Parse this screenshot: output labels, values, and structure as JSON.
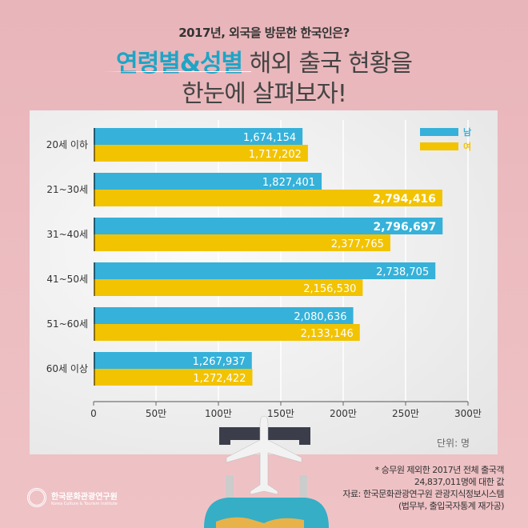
{
  "header": {
    "subtitle": "2017년, 외국을 방문한 한국인은?",
    "title_highlight": "연령별&성별",
    "title_rest": " 해외 출국 현황을",
    "title_line2": "한눈에 살펴보자!"
  },
  "chart_data": {
    "type": "bar",
    "orientation": "horizontal",
    "categories": [
      "20세 이하",
      "21~30세",
      "31~40세",
      "41~50세",
      "51~60세",
      "60세 이상"
    ],
    "series": [
      {
        "name": "남",
        "color": "#36b1d9",
        "values": [
          1674154,
          1827401,
          2796697,
          2738705,
          2080636,
          1267937
        ]
      },
      {
        "name": "여",
        "color": "#f2c300",
        "values": [
          1717202,
          2794416,
          2377765,
          2156530,
          2133146,
          1272422
        ]
      }
    ],
    "xlim": [
      0,
      3000000
    ],
    "xticks": [
      0,
      500000,
      1000000,
      1500000,
      2000000,
      2500000,
      3000000
    ],
    "xtick_labels": [
      "0",
      "50만",
      "100만",
      "150만",
      "200만",
      "250만",
      "300만"
    ],
    "grid": true,
    "legend": "top-right",
    "unit_label": "단위: 명"
  },
  "notes": [
    "* 승무원 제외한 2017년 전체 출국객",
    "24,837,011명에 대한 값",
    "자료: 한국문화관광연구원 관광지식정보시스템",
    "(법무부, 출입국자통계 재가공)"
  ],
  "logo": {
    "name": "한국문화관광연구원",
    "english": "Korea Culture & Tourism Institute"
  }
}
